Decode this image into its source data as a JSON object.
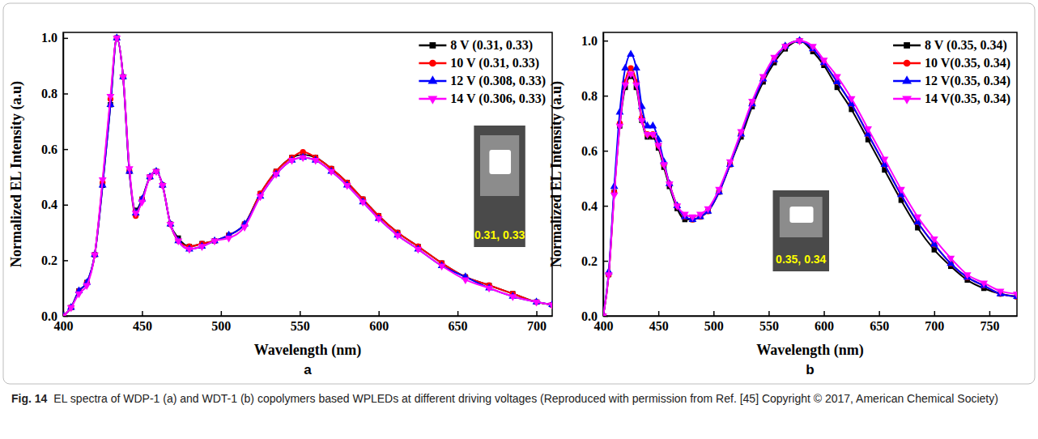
{
  "caption": {
    "label": "Fig. 14",
    "text": "EL spectra of WDP-1 (a) and WDT-1 (b) copolymers based WPLEDs at different driving voltages (Reproduced with permission from Ref. [45] Copyright © 2017, American Chemical Society)"
  },
  "chart_data": [
    {
      "type": "line",
      "panel": "a",
      "xlabel": "Wavelength (nm)",
      "ylabel": "Normalized EL Intensity (a.u)",
      "annotations": [
        "0.31, 0.33"
      ],
      "xlim": [
        400,
        710
      ],
      "xticks": [
        400,
        450,
        500,
        550,
        600,
        650,
        700
      ],
      "ylim": [
        0,
        1.02
      ],
      "yticks": [
        {
          "value": 0,
          "label": "0.0"
        },
        0.2,
        0.4,
        0.6,
        0.8,
        {
          "value": 1,
          "label": "1.0"
        }
      ],
      "grid": false,
      "legend": "upper right",
      "x": [
        400,
        405,
        410,
        415,
        420,
        425,
        430,
        434,
        438,
        442,
        446,
        450,
        455,
        459,
        463,
        468,
        473,
        480,
        488,
        496,
        505,
        515,
        525,
        535,
        545,
        552,
        560,
        570,
        580,
        590,
        600,
        612,
        625,
        640,
        655,
        670,
        685,
        700,
        710
      ],
      "series": [
        {
          "name": "8 V (0.31, 0.33)",
          "color": "#000000",
          "marker": "square",
          "values": [
            0.0,
            0.03,
            0.09,
            0.12,
            0.22,
            0.47,
            0.76,
            1.0,
            0.86,
            0.52,
            0.38,
            0.42,
            0.5,
            0.52,
            0.47,
            0.33,
            0.28,
            0.25,
            0.26,
            0.27,
            0.29,
            0.33,
            0.44,
            0.52,
            0.57,
            0.58,
            0.57,
            0.53,
            0.48,
            0.42,
            0.36,
            0.3,
            0.25,
            0.19,
            0.14,
            0.11,
            0.08,
            0.05,
            0.04
          ]
        },
        {
          "name": "10 V (0.31, 0.33)",
          "color": "#ff0000",
          "marker": "circle",
          "values": [
            0.0,
            0.03,
            0.09,
            0.12,
            0.22,
            0.48,
            0.78,
            1.0,
            0.86,
            0.52,
            0.36,
            0.42,
            0.5,
            0.52,
            0.47,
            0.33,
            0.27,
            0.25,
            0.26,
            0.27,
            0.29,
            0.33,
            0.44,
            0.52,
            0.57,
            0.59,
            0.57,
            0.53,
            0.48,
            0.42,
            0.36,
            0.3,
            0.25,
            0.19,
            0.14,
            0.11,
            0.08,
            0.05,
            0.04
          ]
        },
        {
          "name": "12 V (0.308, 0.33)",
          "color": "#0000ff",
          "marker": "triangle-up",
          "values": [
            0.0,
            0.03,
            0.09,
            0.12,
            0.22,
            0.47,
            0.76,
            1.0,
            0.86,
            0.52,
            0.37,
            0.42,
            0.5,
            0.52,
            0.47,
            0.33,
            0.27,
            0.24,
            0.25,
            0.27,
            0.29,
            0.33,
            0.43,
            0.51,
            0.56,
            0.57,
            0.56,
            0.52,
            0.47,
            0.41,
            0.35,
            0.29,
            0.24,
            0.18,
            0.14,
            0.1,
            0.07,
            0.05,
            0.04
          ]
        },
        {
          "name": "14 V (0.306, 0.33)",
          "color": "#ff00ff",
          "marker": "triangle-down",
          "values": [
            0.0,
            0.03,
            0.08,
            0.11,
            0.22,
            0.49,
            0.79,
            1.0,
            0.86,
            0.53,
            0.37,
            0.41,
            0.5,
            0.52,
            0.47,
            0.33,
            0.27,
            0.24,
            0.25,
            0.27,
            0.28,
            0.32,
            0.43,
            0.51,
            0.56,
            0.57,
            0.56,
            0.52,
            0.47,
            0.41,
            0.35,
            0.29,
            0.24,
            0.18,
            0.13,
            0.1,
            0.07,
            0.05,
            0.04
          ]
        }
      ]
    },
    {
      "type": "line",
      "panel": "b",
      "xlabel": "Wavelength (nm)",
      "ylabel": "Normalized  EL Intensity (a.u)",
      "annotations": [
        "0.35, 0.34"
      ],
      "xlim": [
        400,
        775
      ],
      "xticks": [
        400,
        450,
        500,
        550,
        600,
        650,
        700,
        750
      ],
      "ylim": [
        0,
        1.03
      ],
      "yticks": [
        {
          "value": 0,
          "label": "0.0"
        },
        0.2,
        0.4,
        0.6,
        0.8,
        {
          "value": 1,
          "label": "1.0"
        }
      ],
      "grid": false,
      "legend": "upper right",
      "x": [
        400,
        405,
        410,
        415,
        420,
        425,
        430,
        435,
        440,
        445,
        450,
        455,
        460,
        467,
        474,
        481,
        488,
        495,
        505,
        515,
        525,
        535,
        545,
        555,
        565,
        578,
        590,
        600,
        612,
        625,
        640,
        655,
        670,
        685,
        700,
        715,
        730,
        745,
        760,
        775
      ],
      "series": [
        {
          "name": "8 V (0.35, 0.34)",
          "color": "#000000",
          "marker": "square",
          "values": [
            0.0,
            0.15,
            0.45,
            0.69,
            0.83,
            0.87,
            0.83,
            0.71,
            0.65,
            0.65,
            0.61,
            0.54,
            0.47,
            0.39,
            0.35,
            0.35,
            0.36,
            0.38,
            0.45,
            0.55,
            0.65,
            0.76,
            0.85,
            0.92,
            0.97,
            1.0,
            0.96,
            0.91,
            0.83,
            0.75,
            0.64,
            0.53,
            0.42,
            0.32,
            0.24,
            0.18,
            0.13,
            0.1,
            0.08,
            0.07
          ]
        },
        {
          "name": "10 V(0.35, 0.34)",
          "color": "#ff0000",
          "marker": "circle",
          "values": [
            0.0,
            0.15,
            0.45,
            0.7,
            0.85,
            0.9,
            0.85,
            0.72,
            0.66,
            0.66,
            0.62,
            0.55,
            0.48,
            0.4,
            0.36,
            0.35,
            0.36,
            0.38,
            0.45,
            0.55,
            0.66,
            0.77,
            0.86,
            0.93,
            0.98,
            1.0,
            0.97,
            0.92,
            0.85,
            0.77,
            0.66,
            0.55,
            0.44,
            0.34,
            0.26,
            0.19,
            0.14,
            0.11,
            0.08,
            0.07
          ]
        },
        {
          "name": "12 V(0.35, 0.34)",
          "color": "#0000ff",
          "marker": "triangle-up",
          "values": [
            0.0,
            0.16,
            0.47,
            0.74,
            0.9,
            0.95,
            0.9,
            0.76,
            0.69,
            0.69,
            0.64,
            0.56,
            0.48,
            0.4,
            0.36,
            0.35,
            0.36,
            0.38,
            0.45,
            0.55,
            0.66,
            0.77,
            0.86,
            0.93,
            0.98,
            1.0,
            0.97,
            0.92,
            0.85,
            0.77,
            0.66,
            0.55,
            0.44,
            0.34,
            0.26,
            0.19,
            0.14,
            0.11,
            0.08,
            0.07
          ]
        },
        {
          "name": "14 V(0.35, 0.34)",
          "color": "#ff00ff",
          "marker": "triangle-down",
          "values": [
            0.0,
            0.15,
            0.44,
            0.69,
            0.84,
            0.88,
            0.84,
            0.71,
            0.66,
            0.66,
            0.62,
            0.55,
            0.48,
            0.4,
            0.37,
            0.36,
            0.37,
            0.39,
            0.46,
            0.56,
            0.67,
            0.78,
            0.87,
            0.94,
            0.98,
            1.0,
            0.98,
            0.93,
            0.87,
            0.79,
            0.68,
            0.57,
            0.46,
            0.36,
            0.28,
            0.21,
            0.15,
            0.12,
            0.09,
            0.08
          ]
        }
      ]
    }
  ]
}
